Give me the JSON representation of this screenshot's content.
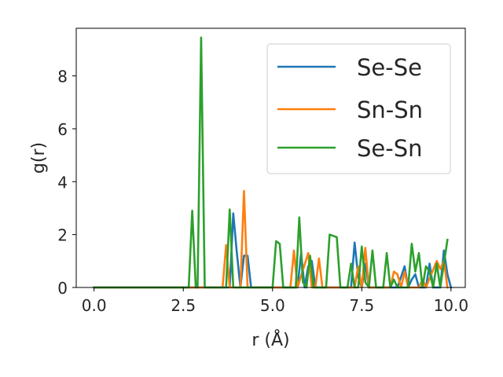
{
  "chart_data": {
    "type": "line",
    "xlabel": "r (Å)",
    "ylabel": "g(r)",
    "xlim": [
      -0.5,
      10.4
    ],
    "ylim": [
      0,
      9.8
    ],
    "x_ticks": [
      0.0,
      2.5,
      5.0,
      7.5,
      10.0
    ],
    "x_tick_labels": [
      "0.0",
      "2.5",
      "5.0",
      "7.5",
      "10.0"
    ],
    "y_ticks": [
      0,
      2,
      4,
      6,
      8
    ],
    "y_tick_labels": [
      "0",
      "2",
      "4",
      "6",
      "8"
    ],
    "legend": {
      "position": "upper-right",
      "entries": [
        "Se-Se",
        "Sn-Sn",
        "Se-Sn"
      ]
    },
    "series": [
      {
        "name": "Se-Se",
        "color": "#1f77b4",
        "points": [
          [
            0.0,
            0
          ],
          [
            3.7,
            0
          ],
          [
            3.8,
            0
          ],
          [
            3.9,
            2.8
          ],
          [
            4.0,
            1.3
          ],
          [
            4.1,
            0
          ],
          [
            4.2,
            1.2
          ],
          [
            4.3,
            1.2
          ],
          [
            4.4,
            0
          ],
          [
            5.6,
            0
          ],
          [
            5.7,
            0
          ],
          [
            5.8,
            1.3
          ],
          [
            5.9,
            0
          ],
          [
            6.0,
            0.8
          ],
          [
            6.1,
            1.0
          ],
          [
            6.2,
            0
          ],
          [
            6.5,
            0
          ],
          [
            6.6,
            0
          ],
          [
            7.2,
            0
          ],
          [
            7.3,
            1.7
          ],
          [
            7.4,
            0.4
          ],
          [
            7.5,
            0
          ],
          [
            7.6,
            0.9
          ],
          [
            7.7,
            0
          ],
          [
            8.5,
            0
          ],
          [
            8.6,
            0.4
          ],
          [
            8.7,
            0.8
          ],
          [
            8.8,
            0
          ],
          [
            8.9,
            0.3
          ],
          [
            9.0,
            0.5
          ],
          [
            9.1,
            0
          ],
          [
            9.3,
            0
          ],
          [
            9.4,
            0.9
          ],
          [
            9.5,
            0
          ],
          [
            9.7,
            0
          ],
          [
            9.8,
            1.4
          ],
          [
            9.9,
            0.5
          ],
          [
            10.0,
            0
          ]
        ]
      },
      {
        "name": "Sn-Sn",
        "color": "#ff7f0e",
        "points": [
          [
            0.0,
            0
          ],
          [
            3.6,
            0
          ],
          [
            3.7,
            1.6
          ],
          [
            3.8,
            0
          ],
          [
            4.1,
            0
          ],
          [
            4.2,
            3.65
          ],
          [
            4.3,
            0
          ],
          [
            5.5,
            0
          ],
          [
            5.6,
            1.4
          ],
          [
            5.7,
            0
          ],
          [
            6.0,
            1.3
          ],
          [
            6.1,
            0
          ],
          [
            6.2,
            0
          ],
          [
            6.3,
            1.1
          ],
          [
            6.4,
            0
          ],
          [
            7.3,
            0
          ],
          [
            7.4,
            0.8
          ],
          [
            7.5,
            0
          ],
          [
            7.6,
            1.5
          ],
          [
            7.7,
            0
          ],
          [
            7.8,
            0
          ],
          [
            8.3,
            0
          ],
          [
            8.4,
            0.6
          ],
          [
            8.5,
            0.5
          ],
          [
            8.6,
            0
          ],
          [
            8.7,
            0.6
          ],
          [
            8.8,
            0
          ],
          [
            9.1,
            0
          ],
          [
            9.2,
            0.3
          ],
          [
            9.3,
            0
          ],
          [
            9.6,
            1.0
          ],
          [
            9.7,
            0.7
          ],
          [
            9.8,
            1.0
          ],
          [
            9.9,
            0
          ]
        ]
      },
      {
        "name": "Se-Sn",
        "color": "#2ca02c",
        "points": [
          [
            0.0,
            0
          ],
          [
            2.65,
            0
          ],
          [
            2.75,
            2.9
          ],
          [
            2.85,
            0
          ],
          [
            2.9,
            0
          ],
          [
            3.0,
            9.45
          ],
          [
            3.1,
            0
          ],
          [
            3.7,
            0
          ],
          [
            3.8,
            2.95
          ],
          [
            3.9,
            0
          ],
          [
            5.0,
            0
          ],
          [
            5.1,
            1.75
          ],
          [
            5.2,
            1.65
          ],
          [
            5.3,
            0
          ],
          [
            5.65,
            0
          ],
          [
            5.75,
            2.65
          ],
          [
            5.85,
            0.2
          ],
          [
            5.95,
            0
          ],
          [
            6.05,
            1.2
          ],
          [
            6.15,
            0
          ],
          [
            6.4,
            0
          ],
          [
            6.5,
            0
          ],
          [
            6.6,
            2.0
          ],
          [
            6.7,
            1.95
          ],
          [
            6.8,
            1.9
          ],
          [
            6.9,
            0
          ],
          [
            7.1,
            0
          ],
          [
            7.2,
            0.9
          ],
          [
            7.3,
            0
          ],
          [
            7.4,
            0
          ],
          [
            7.5,
            1.55
          ],
          [
            7.6,
            0.2
          ],
          [
            7.7,
            0
          ],
          [
            7.8,
            1.4
          ],
          [
            7.9,
            0
          ],
          [
            8.1,
            0
          ],
          [
            8.2,
            1.3
          ],
          [
            8.3,
            0
          ],
          [
            8.4,
            0.3
          ],
          [
            8.5,
            0
          ],
          [
            8.8,
            0
          ],
          [
            8.9,
            1.65
          ],
          [
            9.0,
            0.6
          ],
          [
            9.1,
            1.3
          ],
          [
            9.2,
            0
          ],
          [
            9.3,
            0.8
          ],
          [
            9.4,
            0.6
          ],
          [
            9.5,
            0
          ],
          [
            9.6,
            0.9
          ],
          [
            9.7,
            0
          ],
          [
            9.8,
            0.9
          ],
          [
            9.9,
            1.8
          ]
        ]
      }
    ]
  }
}
